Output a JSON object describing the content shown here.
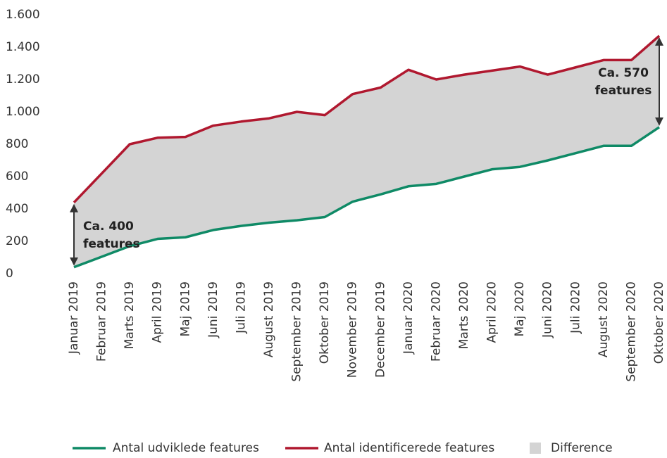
{
  "chart_data": {
    "type": "line",
    "categories": [
      "Januar 2019",
      "Februar 2019",
      "Marts 2019",
      "April 2019",
      "Maj 2019",
      "Juni 2019",
      "Juli 2019",
      "August 2019",
      "September 2019",
      "Oktober 2019",
      "November 2019",
      "December 2019",
      "Januar 2020",
      "Februar 2020",
      "Marts 2020",
      "April 2020",
      "Maj 2020",
      "Juni 2020",
      "Juli 2020",
      "August 2020",
      "September 2020",
      "Oktober 2020"
    ],
    "series": [
      {
        "name": "Antal udviklede features",
        "color": "#0f8a66",
        "values": [
          40,
          105,
          170,
          215,
          225,
          270,
          295,
          315,
          330,
          350,
          445,
          490,
          540,
          555,
          600,
          645,
          660,
          700,
          745,
          790,
          790,
          905
        ]
      },
      {
        "name": "Antal identificerede features",
        "color": "#b0182f",
        "values": [
          440,
          620,
          800,
          840,
          845,
          915,
          940,
          960,
          1000,
          980,
          1110,
          1150,
          1260,
          1200,
          1230,
          1255,
          1280,
          1230,
          1275,
          1320,
          1320,
          1470
        ]
      }
    ],
    "difference": {
      "name": "Difference",
      "color": "#d4d4d4"
    },
    "annotations": [
      {
        "lines": [
          "Ca. 400",
          "features"
        ]
      },
      {
        "lines": [
          "Ca. 570",
          "features"
        ]
      }
    ],
    "ylim": [
      0,
      1600
    ],
    "yticks": [
      0,
      200,
      400,
      600,
      800,
      {
        "value": 1000,
        "label": "1.000"
      },
      {
        "value": 1200,
        "label": "1.200"
      },
      {
        "value": 1400,
        "label": "1.400"
      },
      {
        "value": 1600,
        "label": "1.600"
      }
    ],
    "grid": false,
    "legend": "bottom"
  }
}
